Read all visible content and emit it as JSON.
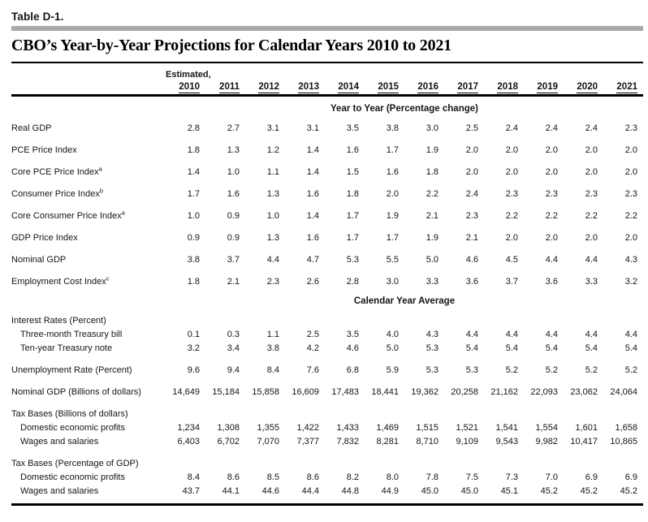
{
  "table": {
    "label": "Table D-1.",
    "title": "CBO’s Year-by-Year Projections for Calendar Years 2010 to 2021",
    "estimated_label": "Estimated,",
    "years": [
      "2010",
      "2011",
      "2012",
      "2013",
      "2014",
      "2015",
      "2016",
      "2017",
      "2018",
      "2019",
      "2020",
      "2021"
    ],
    "sections": [
      {
        "header": "Year to Year (Percentage change)",
        "rows": [
          {
            "label": "Real GDP",
            "sup": "",
            "indent": false,
            "values": [
              "2.8",
              "2.7",
              "3.1",
              "3.1",
              "3.5",
              "3.8",
              "3.0",
              "2.5",
              "2.4",
              "2.4",
              "2.4",
              "2.3"
            ]
          },
          {
            "label": "PCE Price Index",
            "sup": "",
            "indent": false,
            "values": [
              "1.8",
              "1.3",
              "1.2",
              "1.4",
              "1.6",
              "1.7",
              "1.9",
              "2.0",
              "2.0",
              "2.0",
              "2.0",
              "2.0"
            ]
          },
          {
            "label": "Core PCE Price Index",
            "sup": "a",
            "indent": false,
            "values": [
              "1.4",
              "1.0",
              "1.1",
              "1.4",
              "1.5",
              "1.6",
              "1.8",
              "2.0",
              "2.0",
              "2.0",
              "2.0",
              "2.0"
            ]
          },
          {
            "label": "Consumer Price Index",
            "sup": "b",
            "indent": false,
            "values": [
              "1.7",
              "1.6",
              "1.3",
              "1.6",
              "1.8",
              "2.0",
              "2.2",
              "2.4",
              "2.3",
              "2.3",
              "2.3",
              "2.3"
            ]
          },
          {
            "label": "Core Consumer Price Index",
            "sup": "a",
            "indent": false,
            "values": [
              "1.0",
              "0.9",
              "1.0",
              "1.4",
              "1.7",
              "1.9",
              "2.1",
              "2.3",
              "2.2",
              "2.2",
              "2.2",
              "2.2"
            ]
          },
          {
            "label": "GDP Price Index",
            "sup": "",
            "indent": false,
            "values": [
              "0.9",
              "0.9",
              "1.3",
              "1.6",
              "1.7",
              "1.7",
              "1.9",
              "2.1",
              "2.0",
              "2.0",
              "2.0",
              "2.0"
            ]
          },
          {
            "label": "Nominal GDP",
            "sup": "",
            "indent": false,
            "values": [
              "3.8",
              "3.7",
              "4.4",
              "4.7",
              "5.3",
              "5.5",
              "5.0",
              "4.6",
              "4.5",
              "4.4",
              "4.4",
              "4.3"
            ]
          },
          {
            "label": "Employment Cost Index",
            "sup": "c",
            "indent": false,
            "values": [
              "1.8",
              "2.1",
              "2.3",
              "2.6",
              "2.8",
              "3.0",
              "3.3",
              "3.6",
              "3.7",
              "3.6",
              "3.3",
              "3.2"
            ]
          }
        ]
      },
      {
        "header": "Calendar Year Average",
        "rows": [
          {
            "label": "Interest Rates (Percent)",
            "sup": "",
            "indent": false,
            "values": []
          },
          {
            "label": "Three-month Treasury bill",
            "sup": "",
            "indent": true,
            "values": [
              "0.1",
              "0.3",
              "1.1",
              "2.5",
              "3.5",
              "4.0",
              "4.3",
              "4.4",
              "4.4",
              "4.4",
              "4.4",
              "4.4"
            ]
          },
          {
            "label": "Ten-year Treasury note",
            "sup": "",
            "indent": true,
            "values": [
              "3.2",
              "3.4",
              "3.8",
              "4.2",
              "4.6",
              "5.0",
              "5.3",
              "5.4",
              "5.4",
              "5.4",
              "5.4",
              "5.4"
            ]
          },
          {
            "label": "Unemployment Rate (Percent)",
            "sup": "",
            "indent": false,
            "values": [
              "9.6",
              "9.4",
              "8.4",
              "7.6",
              "6.8",
              "5.9",
              "5.3",
              "5.3",
              "5.2",
              "5.2",
              "5.2",
              "5.2"
            ]
          },
          {
            "label": "Nominal GDP (Billions of dollars)",
            "sup": "",
            "indent": false,
            "values": [
              "14,649",
              "15,184",
              "15,858",
              "16,609",
              "17,483",
              "18,441",
              "19,362",
              "20,258",
              "21,162",
              "22,093",
              "23,062",
              "24,064"
            ]
          },
          {
            "label": "Tax Bases (Billions of dollars)",
            "sup": "",
            "indent": false,
            "values": []
          },
          {
            "label": "Domestic economic profits",
            "sup": "",
            "indent": true,
            "values": [
              "1,234",
              "1,308",
              "1,355",
              "1,422",
              "1,433",
              "1,469",
              "1,515",
              "1,521",
              "1,541",
              "1,554",
              "1,601",
              "1,658"
            ]
          },
          {
            "label": "Wages and salaries",
            "sup": "",
            "indent": true,
            "values": [
              "6,403",
              "6,702",
              "7,070",
              "7,377",
              "7,832",
              "8,281",
              "8,710",
              "9,109",
              "9,543",
              "9,982",
              "10,417",
              "10,865"
            ]
          },
          {
            "label": "Tax Bases (Percentage of GDP)",
            "sup": "",
            "indent": false,
            "values": []
          },
          {
            "label": "Domestic economic profits",
            "sup": "",
            "indent": true,
            "values": [
              "8.4",
              "8.6",
              "8.5",
              "8.6",
              "8.2",
              "8.0",
              "7.8",
              "7.5",
              "7.3",
              "7.0",
              "6.9",
              "6.9"
            ]
          },
          {
            "label": "Wages and salaries",
            "sup": "",
            "indent": true,
            "values": [
              "43.7",
              "44.1",
              "44.6",
              "44.4",
              "44.8",
              "44.9",
              "45.0",
              "45.0",
              "45.1",
              "45.2",
              "45.2",
              "45.2"
            ]
          }
        ]
      }
    ]
  }
}
